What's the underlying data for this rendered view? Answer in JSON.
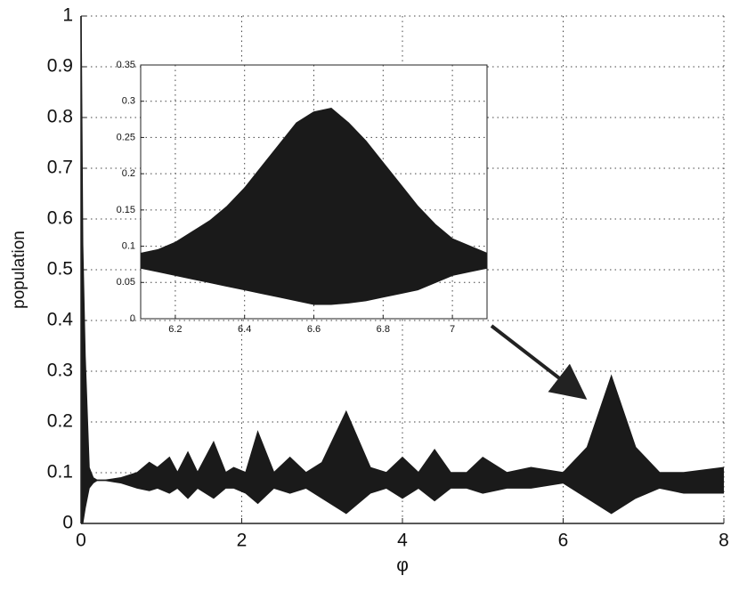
{
  "chart_data": [
    {
      "type": "band",
      "xlabel": "φ",
      "ylabel": "population",
      "x": [
        0,
        0.02,
        0.05,
        0.1,
        0.15,
        0.2,
        0.3,
        0.5,
        0.7,
        0.85,
        0.95,
        1.1,
        1.2,
        1.33,
        1.45,
        1.65,
        1.8,
        1.9,
        2.05,
        2.2,
        2.4,
        2.6,
        2.8,
        3.0,
        3.3,
        3.6,
        3.8,
        4.0,
        4.2,
        4.4,
        4.6,
        4.8,
        5.0,
        5.3,
        5.6,
        6.0,
        6.3,
        6.6,
        6.9,
        7.2,
        7.5,
        8.0
      ],
      "series": [
        {
          "color": "#1a1a1a",
          "values": [
            1.0,
            0.55,
            0.33,
            0.11,
            0.09,
            0.085,
            0.085,
            0.09,
            0.1,
            0.12,
            0.11,
            0.13,
            0.1,
            0.14,
            0.1,
            0.16,
            0.1,
            0.11,
            0.1,
            0.18,
            0.1,
            0.13,
            0.1,
            0.12,
            0.22,
            0.11,
            0.1,
            0.13,
            0.1,
            0.145,
            0.1,
            0.1,
            0.13,
            0.1,
            0.11,
            0.1,
            0.15,
            0.29,
            0.15,
            0.1,
            0.1,
            0.11
          ]
        },
        {
          "color": "#1a1a1a",
          "values": [
            0,
            0.0,
            0.03,
            0.07,
            0.08,
            0.085,
            0.085,
            0.08,
            0.07,
            0.065,
            0.07,
            0.06,
            0.07,
            0.05,
            0.07,
            0.05,
            0.07,
            0.07,
            0.06,
            0.04,
            0.07,
            0.06,
            0.07,
            0.05,
            0.02,
            0.06,
            0.07,
            0.05,
            0.07,
            0.045,
            0.07,
            0.07,
            0.06,
            0.07,
            0.07,
            0.08,
            0.05,
            0.02,
            0.05,
            0.07,
            0.06,
            0.06
          ]
        }
      ],
      "xlim": [
        0,
        8
      ],
      "xticks": [
        0,
        2,
        4,
        6,
        8
      ],
      "ylim": [
        0,
        1
      ],
      "yticks": [
        0,
        0.1,
        0.2,
        0.3,
        0.4,
        0.5,
        0.6,
        0.7,
        0.8,
        0.9,
        1
      ],
      "grid": true
    },
    {
      "type": "band",
      "x": [
        6.1,
        6.15,
        6.2,
        6.25,
        6.3,
        6.35,
        6.4,
        6.45,
        6.5,
        6.55,
        6.6,
        6.65,
        6.7,
        6.75,
        6.8,
        6.85,
        6.9,
        6.95,
        7.0,
        7.05,
        7.1
      ],
      "series": [
        {
          "color": "#1a1a1a",
          "values": [
            0.09,
            0.095,
            0.105,
            0.12,
            0.135,
            0.155,
            0.18,
            0.21,
            0.24,
            0.27,
            0.285,
            0.29,
            0.27,
            0.245,
            0.215,
            0.185,
            0.155,
            0.13,
            0.11,
            0.1,
            0.09
          ]
        },
        {
          "color": "#1a1a1a",
          "values": [
            0.07,
            0.065,
            0.06,
            0.055,
            0.05,
            0.045,
            0.04,
            0.035,
            0.03,
            0.025,
            0.02,
            0.02,
            0.022,
            0.025,
            0.03,
            0.035,
            0.04,
            0.05,
            0.06,
            0.065,
            0.07
          ]
        }
      ],
      "xlim": [
        6.1,
        7.1
      ],
      "xticks": [
        6.2,
        6.4,
        6.6,
        6.8,
        7
      ],
      "ylim": [
        0,
        0.35
      ],
      "yticks": [
        0,
        0.05,
        0.1,
        0.15,
        0.2,
        0.25,
        0.3,
        0.35
      ],
      "grid": true
    }
  ]
}
